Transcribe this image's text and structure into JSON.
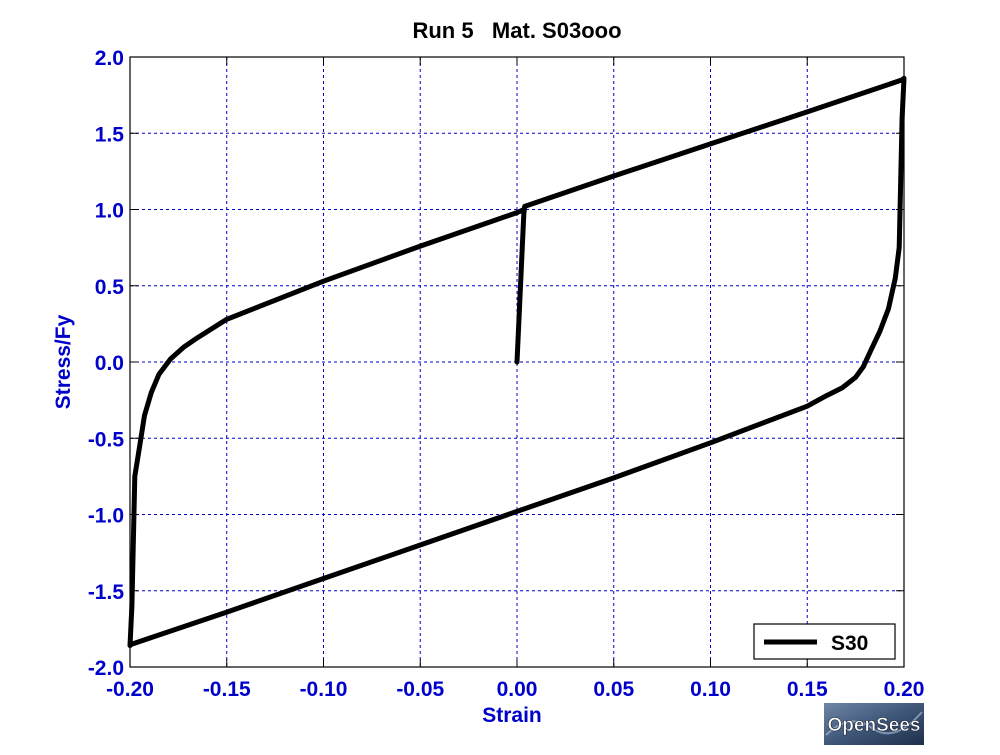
{
  "chart_data": {
    "type": "line",
    "title": "Run 5   Mat. S03ooo",
    "xlabel": "Strain",
    "ylabel": "Stress/Fy",
    "xlim": [
      -0.2,
      0.2
    ],
    "ylim": [
      -2.0,
      2.0
    ],
    "xticks": [
      -0.2,
      -0.15,
      -0.1,
      -0.05,
      0.0,
      0.05,
      0.1,
      0.15,
      0.2
    ],
    "xtick_labels": [
      "-0.20",
      "-0.15",
      "-0.10",
      "-0.05",
      "0.00",
      "0.05",
      "0.10",
      "0.15",
      "0.20"
    ],
    "yticks": [
      -2.0,
      -1.5,
      -1.0,
      -0.5,
      0.0,
      0.5,
      1.0,
      1.5,
      2.0
    ],
    "ytick_labels": [
      "-2.0",
      "-1.5",
      "-1.0",
      "-0.5",
      "0.0",
      "0.5",
      "1.0",
      "1.5",
      "2.0"
    ],
    "grid": true,
    "legend_position": "bottom-right",
    "series": [
      {
        "name": "S30",
        "color": "#000000",
        "x": [
          0.0,
          0.0035,
          0.004,
          0.05,
          0.1,
          0.15,
          0.199,
          0.2,
          0.199,
          0.1975,
          0.1955,
          0.192,
          0.1875,
          0.183,
          0.179,
          0.175,
          0.168,
          0.16,
          0.15,
          0.1,
          0.05,
          0.0,
          -0.05,
          -0.1,
          -0.15,
          -0.199,
          -0.2,
          -0.199,
          -0.1975,
          -0.195,
          -0.1925,
          -0.189,
          -0.185,
          -0.179,
          -0.172,
          -0.165,
          -0.15,
          -0.1,
          -0.05,
          0.0,
          0.0035
        ],
        "y": [
          0.0,
          0.97,
          1.02,
          1.22,
          1.43,
          1.64,
          1.85,
          1.86,
          1.6,
          0.75,
          0.55,
          0.35,
          0.2,
          0.08,
          -0.03,
          -0.1,
          -0.17,
          -0.22,
          -0.29,
          -0.53,
          -0.76,
          -0.98,
          -1.2,
          -1.42,
          -1.64,
          -1.85,
          -1.86,
          -1.6,
          -0.75,
          -0.55,
          -0.35,
          -0.2,
          -0.08,
          0.02,
          0.1,
          0.16,
          0.28,
          0.53,
          0.76,
          0.98,
          1.0
        ]
      }
    ]
  },
  "watermark": {
    "text": "OpenSees"
  },
  "colors": {
    "axis": "#0000cc",
    "grid": "#0000cc",
    "title": "#000000",
    "line": "#000000"
  }
}
